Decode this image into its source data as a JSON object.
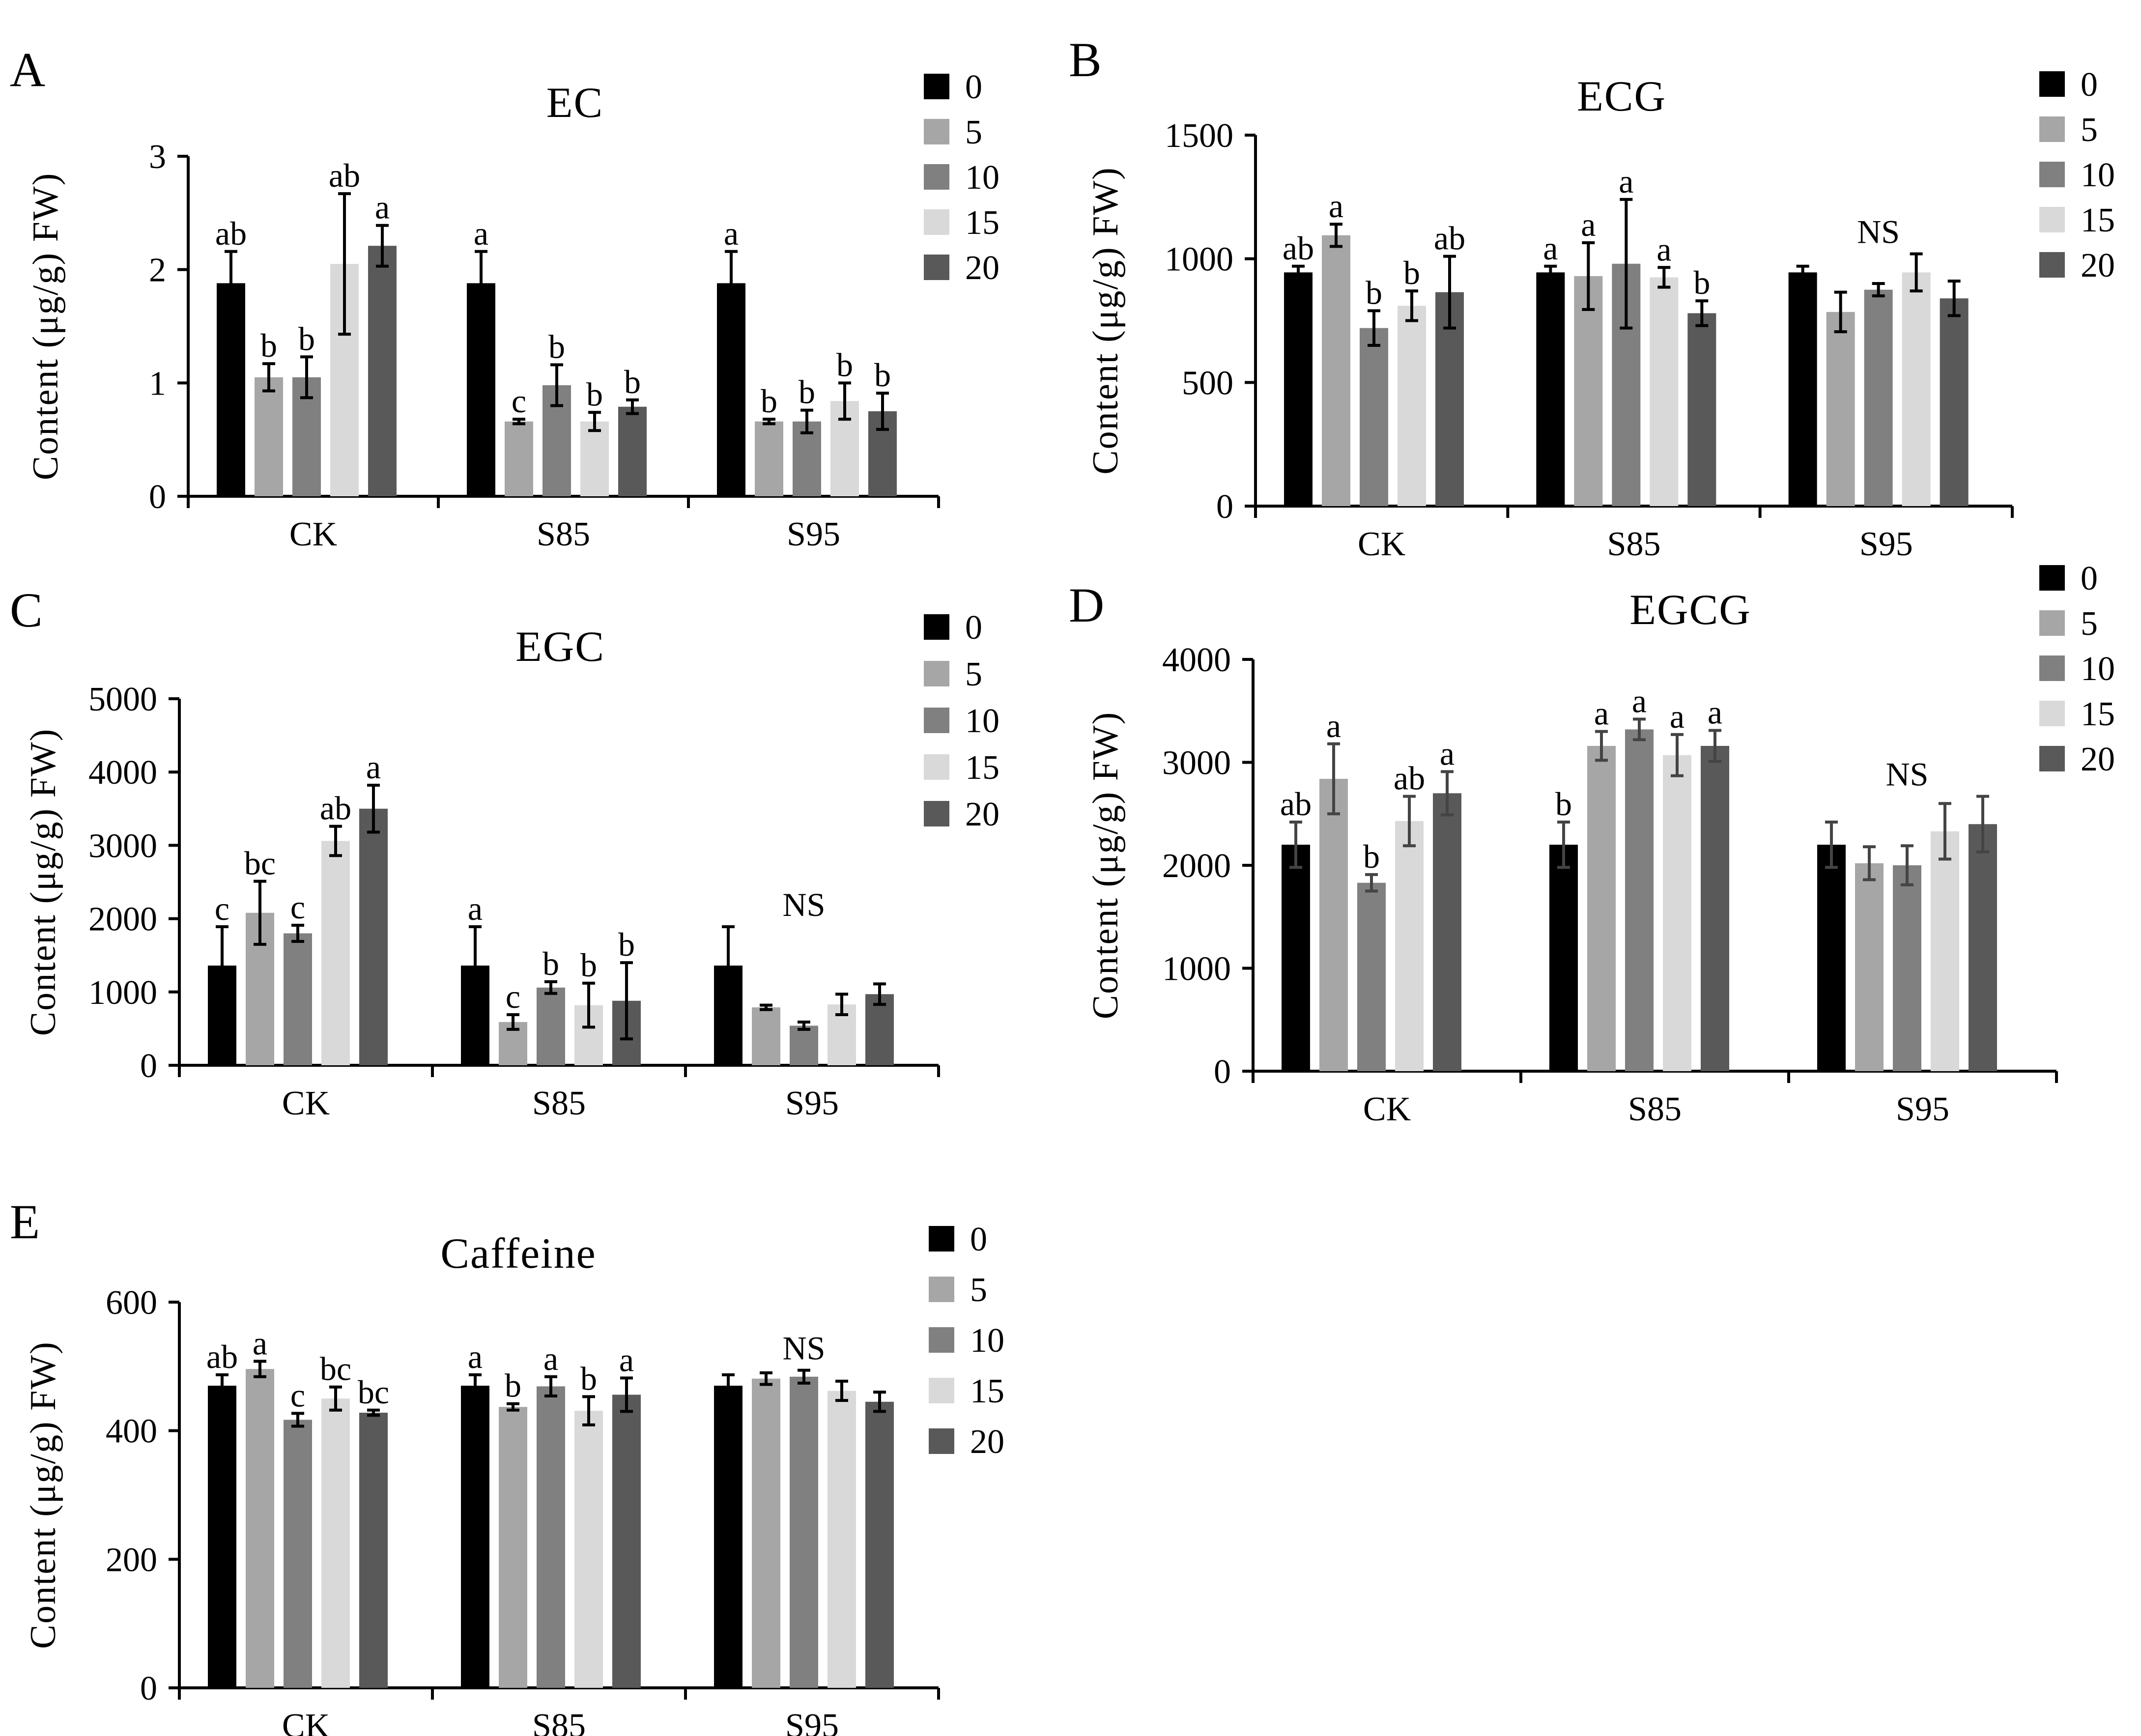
{
  "figure": {
    "colors": {
      "0": "#000000",
      "5": "#a6a6a6",
      "10": "#808080",
      "15": "#d9d9d9",
      "20": "#595959",
      "error": "#000000"
    }
  },
  "chart_data": [
    {
      "panel": "A",
      "type": "bar",
      "title": "EC",
      "xlabel": "",
      "ylabel": "Content (μg/g) FW)",
      "ylim": [
        0,
        3
      ],
      "yticks": [
        0,
        1,
        2,
        3
      ],
      "categories": [
        "CK",
        "S85",
        "S95"
      ],
      "legend": [
        "0",
        "5",
        "10",
        "15",
        "20"
      ],
      "legend_position": "top-right",
      "series": [
        {
          "name": "0",
          "values": [
            1.88,
            1.88,
            1.88
          ],
          "errors": [
            0.28,
            0.28,
            0.28
          ],
          "labels": [
            "ab",
            "a",
            "a"
          ]
        },
        {
          "name": "5",
          "values": [
            1.05,
            0.66,
            0.66
          ],
          "errors": [
            0.12,
            0.02,
            0.02
          ],
          "labels": [
            "b",
            "c",
            "b"
          ]
        },
        {
          "name": "10",
          "values": [
            1.05,
            0.98,
            0.66
          ],
          "errors": [
            0.18,
            0.18,
            0.1
          ],
          "labels": [
            "b",
            "b",
            "b"
          ]
        },
        {
          "name": "15",
          "values": [
            2.05,
            0.66,
            0.84
          ],
          "errors": [
            0.62,
            0.08,
            0.16
          ],
          "labels": [
            "ab",
            "b",
            "b"
          ]
        },
        {
          "name": "20",
          "values": [
            2.21,
            0.79,
            0.75
          ],
          "errors": [
            0.18,
            0.06,
            0.16
          ],
          "labels": [
            "a",
            "b",
            "b"
          ]
        }
      ]
    },
    {
      "panel": "B",
      "type": "bar",
      "title": "ECG",
      "xlabel": "",
      "ylabel": "Content (μg/g) FW)",
      "ylim": [
        0,
        1500
      ],
      "yticks": [
        0,
        500,
        1000,
        1500
      ],
      "categories": [
        "CK",
        "S85",
        "S95"
      ],
      "legend": [
        "0",
        "5",
        "10",
        "15",
        "20"
      ],
      "legend_position": "top-right",
      "series": [
        {
          "name": "0",
          "values": [
            945,
            945,
            945
          ],
          "errors": [
            25,
            25,
            25
          ],
          "labels": [
            "ab",
            "a",
            ""
          ]
        },
        {
          "name": "5",
          "values": [
            1095,
            930,
            785
          ],
          "errors": [
            45,
            135,
            80
          ],
          "labels": [
            "a",
            "a",
            ""
          ]
        },
        {
          "name": "10",
          "values": [
            720,
            980,
            875
          ],
          "errors": [
            70,
            260,
            25
          ],
          "labels": [
            "b",
            "a",
            ""
          ]
        },
        {
          "name": "15",
          "values": [
            810,
            925,
            945
          ],
          "errors": [
            60,
            40,
            75
          ],
          "labels": [
            "b",
            "a",
            ""
          ]
        },
        {
          "name": "20",
          "values": [
            865,
            780,
            840
          ],
          "errors": [
            145,
            50,
            70
          ],
          "labels": [
            "ab",
            "b",
            ""
          ]
        }
      ],
      "annotations": [
        {
          "category": "S95",
          "text": "NS"
        }
      ]
    },
    {
      "panel": "C",
      "type": "bar",
      "title": "EGC",
      "xlabel": "",
      "ylabel": "Content (μg/g) FW)",
      "ylim": [
        0,
        5000
      ],
      "yticks": [
        0,
        1000,
        2000,
        3000,
        4000,
        5000
      ],
      "categories": [
        "CK",
        "S85",
        "S95"
      ],
      "legend": [
        "0",
        "5",
        "10",
        "15",
        "20"
      ],
      "legend_position": "top-right",
      "series": [
        {
          "name": "0",
          "values": [
            1360,
            1360,
            1360
          ],
          "errors": [
            530,
            530,
            530
          ],
          "labels": [
            "c",
            "a",
            ""
          ]
        },
        {
          "name": "5",
          "values": [
            2080,
            590,
            790
          ],
          "errors": [
            430,
            100,
            30
          ],
          "labels": [
            "bc",
            "c",
            ""
          ]
        },
        {
          "name": "10",
          "values": [
            1800,
            1060,
            540
          ],
          "errors": [
            110,
            80,
            50
          ],
          "labels": [
            "c",
            "b",
            ""
          ]
        },
        {
          "name": "15",
          "values": [
            3060,
            820,
            830
          ],
          "errors": [
            200,
            300,
            140
          ],
          "labels": [
            "ab",
            "b",
            ""
          ]
        },
        {
          "name": "20",
          "values": [
            3500,
            880,
            970
          ],
          "errors": [
            320,
            520,
            140
          ],
          "labels": [
            "a",
            "b",
            ""
          ]
        }
      ],
      "annotations": [
        {
          "category": "S95",
          "text": "NS"
        }
      ]
    },
    {
      "panel": "D",
      "type": "bar",
      "title": "EGCG",
      "xlabel": "",
      "ylabel": "Content (μg/g) FW)",
      "ylim": [
        0,
        4000
      ],
      "yticks": [
        0,
        1000,
        2000,
        3000,
        4000
      ],
      "categories": [
        "CK",
        "S85",
        "S95"
      ],
      "legend": [
        "0",
        "5",
        "10",
        "15",
        "20"
      ],
      "legend_position": "top-right",
      "series": [
        {
          "name": "0",
          "values": [
            2200,
            2200,
            2200
          ],
          "errors": [
            220,
            220,
            220
          ],
          "labels": [
            "ab",
            "b",
            ""
          ]
        },
        {
          "name": "5",
          "values": [
            2840,
            3160,
            2020
          ],
          "errors": [
            340,
            140,
            160
          ],
          "labels": [
            "a",
            "a",
            ""
          ]
        },
        {
          "name": "10",
          "values": [
            1830,
            3320,
            2000
          ],
          "errors": [
            80,
            100,
            190
          ],
          "labels": [
            "b",
            "a",
            ""
          ]
        },
        {
          "name": "15",
          "values": [
            2430,
            3070,
            2330
          ],
          "errors": [
            240,
            200,
            270
          ],
          "labels": [
            "ab",
            "a",
            ""
          ]
        },
        {
          "name": "20",
          "values": [
            2700,
            3160,
            2400
          ],
          "errors": [
            210,
            150,
            270
          ],
          "labels": [
            "a",
            "a",
            ""
          ]
        }
      ],
      "annotations": [
        {
          "category": "S95",
          "text": "NS"
        }
      ]
    },
    {
      "panel": "E",
      "type": "bar",
      "title": "Caffeine",
      "xlabel": "",
      "ylabel": "Content (μg/g) FW)",
      "ylim": [
        0,
        600
      ],
      "yticks": [
        0,
        200,
        400,
        600
      ],
      "categories": [
        "CK",
        "S85",
        "S95"
      ],
      "legend": [
        "0",
        "5",
        "10",
        "15",
        "20"
      ],
      "legend_position": "top-right",
      "series": [
        {
          "name": "0",
          "values": [
            470,
            470,
            470
          ],
          "errors": [
            17,
            17,
            17
          ],
          "labels": [
            "ab",
            "a",
            ""
          ]
        },
        {
          "name": "5",
          "values": [
            496,
            437,
            481
          ],
          "errors": [
            12,
            5,
            9
          ],
          "labels": [
            "a",
            "b",
            ""
          ]
        },
        {
          "name": "10",
          "values": [
            417,
            469,
            484
          ],
          "errors": [
            10,
            15,
            10
          ],
          "labels": [
            "c",
            "a",
            ""
          ]
        },
        {
          "name": "15",
          "values": [
            450,
            431,
            462
          ],
          "errors": [
            18,
            22,
            15
          ],
          "labels": [
            "bc",
            "b",
            ""
          ]
        },
        {
          "name": "20",
          "values": [
            428,
            456,
            445
          ],
          "errors": [
            4,
            26,
            15
          ],
          "labels": [
            "bc",
            "a",
            ""
          ]
        }
      ],
      "annotations": [
        {
          "category": "S95",
          "text": "NS"
        }
      ]
    }
  ]
}
